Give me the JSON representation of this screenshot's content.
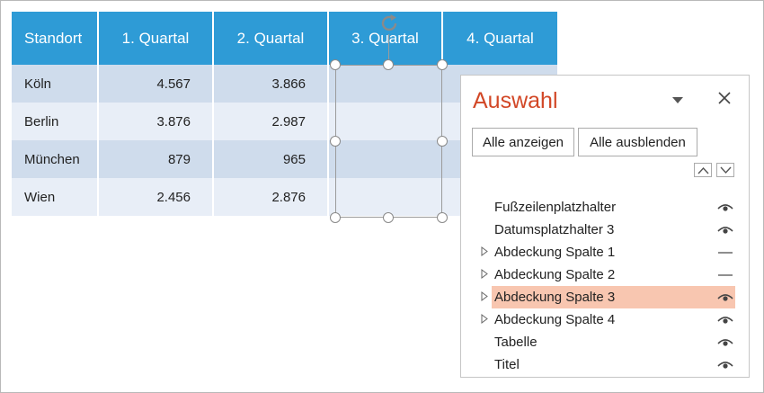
{
  "table": {
    "headers": [
      "Standort",
      "1. Quartal",
      "2. Quartal",
      "3. Quartal",
      "4. Quartal"
    ],
    "rows": [
      [
        "Köln",
        "4.567",
        "3.866"
      ],
      [
        "Berlin",
        "3.876",
        "2.987"
      ],
      [
        "München",
        "879",
        "965"
      ],
      [
        "Wien",
        "2.456",
        "2.876"
      ]
    ]
  },
  "colors": {
    "header_bg": "#2e9bd6",
    "row_odd": "#cfdcec",
    "row_even": "#e8eef7",
    "pane_title": "#d24726",
    "selected_item": "#f8c6b0"
  },
  "selection_pane": {
    "title": "Auswahl",
    "menu_icon": "triangle-down-icon",
    "close_icon": "close-icon",
    "show_all_label": "Alle anzeigen",
    "hide_all_label": "Alle ausblenden",
    "move_up_icon": "chevron-up-icon",
    "move_down_icon": "chevron-down-icon",
    "items": [
      {
        "label": "Fußzeilenplatzhalter",
        "expandable": false,
        "visible": true,
        "selected": false
      },
      {
        "label": "Datumsplatzhalter 3",
        "expandable": false,
        "visible": true,
        "selected": false
      },
      {
        "label": "Abdeckung Spalte 1",
        "expandable": true,
        "visible": false,
        "selected": false
      },
      {
        "label": "Abdeckung Spalte 2",
        "expandable": true,
        "visible": false,
        "selected": false
      },
      {
        "label": "Abdeckung Spalte 3",
        "expandable": true,
        "visible": true,
        "selected": true
      },
      {
        "label": "Abdeckung Spalte 4",
        "expandable": true,
        "visible": true,
        "selected": false
      },
      {
        "label": "Tabelle",
        "expandable": false,
        "visible": true,
        "selected": false
      },
      {
        "label": "Titel",
        "expandable": false,
        "visible": true,
        "selected": false
      }
    ]
  }
}
